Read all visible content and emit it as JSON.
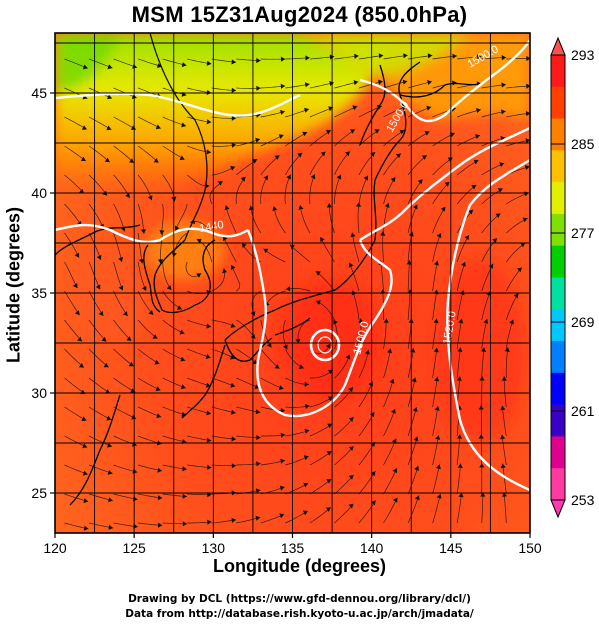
{
  "title": "MSM 15Z31Aug2024 (850.0hPa)",
  "x_axis": {
    "label": "Longitude (degrees)",
    "range": [
      120,
      150
    ],
    "ticks": [
      120,
      125,
      130,
      135,
      140,
      145,
      150
    ]
  },
  "y_axis": {
    "label": "Latitude  (degrees)",
    "range": [
      23,
      48
    ],
    "ticks": [
      25,
      30,
      35,
      40,
      45
    ]
  },
  "colorbar": {
    "range": [
      253,
      293
    ],
    "tick_labels": [
      293,
      285,
      277,
      269,
      261,
      253
    ],
    "colors": [
      "#ff3aa0",
      "#e00090",
      "#3b00c8",
      "#0000ff",
      "#0080ff",
      "#00c8ff",
      "#00e0a0",
      "#00d000",
      "#80e000",
      "#e0f000",
      "#ffc000",
      "#ff8000",
      "#ff4000",
      "#ff1a1a"
    ]
  },
  "contours": [
    {
      "label": "1440",
      "lat_lon": [
        35.7,
        128
      ]
    },
    {
      "label": "1500.0",
      "lat_lon": [
        33,
        136.6
      ]
    },
    {
      "label": "1520.0",
      "lat_lon": [
        34,
        143.5
      ]
    },
    {
      "label": "1500.0",
      "lat_lon": [
        46,
        147.5
      ]
    },
    {
      "label": "1500.0",
      "lat_lon": [
        43,
        139
      ]
    }
  ],
  "typhoon_center": {
    "lon": 136.8,
    "lat": 32.6
  },
  "credits": [
    "Drawing by DCL (https://www.gfd-dennou.org/library/dcl/)",
    "Data from http://database.rish.kyoto-u.ac.jp/arch/jmadata/"
  ],
  "colors": {
    "frame": "#000000",
    "contour": "#ffffff",
    "stream": "#111111",
    "coast": "#000000"
  }
}
